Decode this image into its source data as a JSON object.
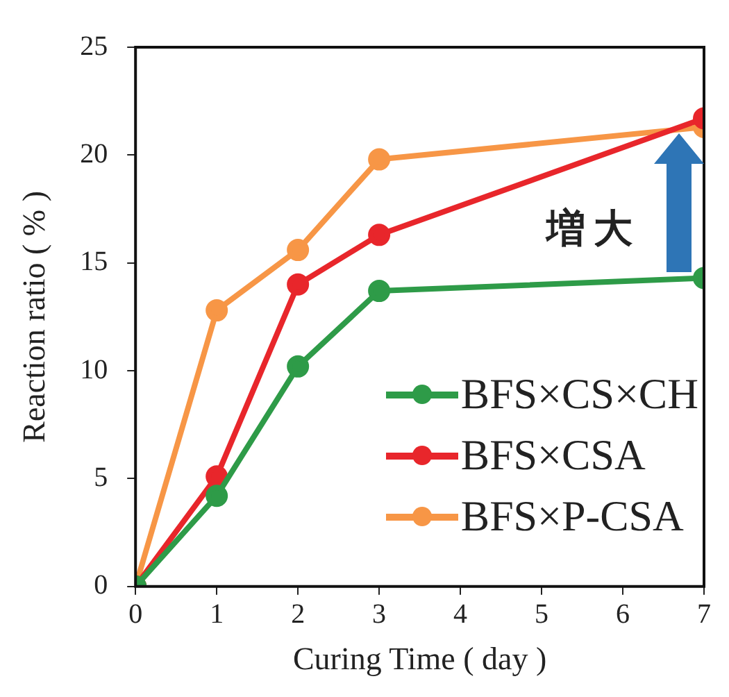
{
  "chart_data": {
    "type": "line",
    "xlabel": "Curing Time ( day )",
    "ylabel": "Reaction ratio ( % )",
    "x": [
      0,
      1,
      2,
      3,
      7
    ],
    "xlim": [
      0,
      7
    ],
    "xticks": [
      0,
      1,
      2,
      3,
      4,
      5,
      6,
      7
    ],
    "ylim": [
      0,
      25
    ],
    "yticks": [
      0,
      5,
      10,
      15,
      20,
      25
    ],
    "grid": false,
    "legend": "bottom right",
    "marker": "circle",
    "line_style": "solid",
    "annotations": [
      {
        "text": "増大",
        "x": 6.7,
        "y": 21
      }
    ],
    "series": [
      {
        "name": "BFS×CS×CH",
        "color": "#2e9b48",
        "values": [
          0,
          4.2,
          10.2,
          13.7,
          14.3
        ]
      },
      {
        "name": "BFS×CSA",
        "color": "#e8262b",
        "values": [
          0,
          5.1,
          14.0,
          16.3,
          21.7
        ]
      },
      {
        "name": "BFS×P-CSA",
        "color": "#f79646",
        "values": [
          0,
          12.8,
          15.6,
          19.8,
          21.3
        ]
      }
    ]
  }
}
